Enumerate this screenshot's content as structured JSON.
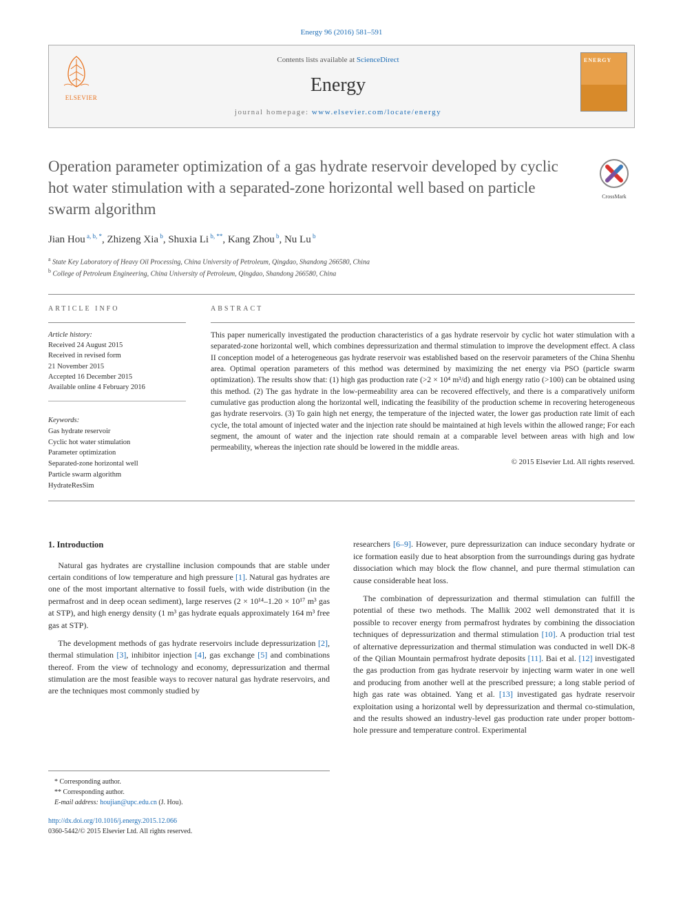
{
  "citation": "Energy 96 (2016) 581–591",
  "header": {
    "contents_prefix": "Contents lists available at ",
    "contents_link": "ScienceDirect",
    "journal": "Energy",
    "homepage_prefix": "journal homepage: ",
    "homepage_link": "www.elsevier.com/locate/energy",
    "publisher_name": "ELSEVIER"
  },
  "crossmark_label": "CrossMark",
  "title": "Operation parameter optimization of a gas hydrate reservoir developed by cyclic hot water stimulation with a separated-zone horizontal well based on particle swarm algorithm",
  "authors_html": "Jian Hou|a, b, *|, Zhizeng Xia|b|, Shuxia Li|b, **|, Kang Zhou|b|, Nu Lu|b",
  "affiliations": {
    "a": "State Key Laboratory of Heavy Oil Processing, China University of Petroleum, Qingdao, Shandong 266580, China",
    "b": "College of Petroleum Engineering, China University of Petroleum, Qingdao, Shandong 266580, China"
  },
  "article_info": {
    "heading": "ARTICLE INFO",
    "history_label": "Article history:",
    "history": [
      "Received 24 August 2015",
      "Received in revised form",
      "21 November 2015",
      "Accepted 16 December 2015",
      "Available online 4 February 2016"
    ],
    "keywords_label": "Keywords:",
    "keywords": [
      "Gas hydrate reservoir",
      "Cyclic hot water stimulation",
      "Parameter optimization",
      "Separated-zone horizontal well",
      "Particle swarm algorithm",
      "HydrateResSim"
    ]
  },
  "abstract": {
    "heading": "ABSTRACT",
    "text": "This paper numerically investigated the production characteristics of a gas hydrate reservoir by cyclic hot water stimulation with a separated-zone horizontal well, which combines depressurization and thermal stimulation to improve the development effect. A class II conception model of a heterogeneous gas hydrate reservoir was established based on the reservoir parameters of the China Shenhu area. Optimal operation parameters of this method was determined by maximizing the net energy via PSO (particle swarm optimization). The results show that: (1) high gas production rate (>2 × 10⁴ m³/d) and high energy ratio (>100) can be obtained using this method. (2) The gas hydrate in the low-permeability area can be recovered effectively, and there is a comparatively uniform cumulative gas production along the horizontal well, indicating the feasibility of the production scheme in recovering heterogeneous gas hydrate reservoirs. (3) To gain high net energy, the temperature of the injected water, the lower gas production rate limit of each cycle, the total amount of injected water and the injection rate should be maintained at high levels within the allowed range; For each segment, the amount of water and the injection rate should remain at a comparable level between areas with high and low permeability, whereas the injection rate should be lowered in the middle areas.",
    "copyright": "© 2015 Elsevier Ltd. All rights reserved."
  },
  "section1": {
    "heading": "1. Introduction",
    "p1_a": "Natural gas hydrates are crystalline inclusion compounds that are stable under certain conditions of low temperature and high pressure ",
    "p1_ref1": "[1]",
    "p1_b": ". Natural gas hydrates are one of the most important alternative to fossil fuels, with wide distribution (in the permafrost and in deep ocean sediment), large reserves (2 × 10¹⁴–1.20 × 10¹⁷ m³ gas at STP), and high energy density (1 m³ gas hydrate equals approximately 164 m³ free gas at STP).",
    "p2_a": "The development methods of gas hydrate reservoirs include depressurization ",
    "p2_ref2": "[2]",
    "p2_b": ", thermal stimulation ",
    "p2_ref3": "[3]",
    "p2_c": ", inhibitor injection ",
    "p2_ref4": "[4]",
    "p2_d": ", gas exchange ",
    "p2_ref5": "[5]",
    "p2_e": " and combinations thereof. From the view of technology and economy, depressurization and thermal stimulation are the most feasible ways to recover natural gas hydrate reservoirs, and are the techniques most commonly studied by"
  },
  "col2": {
    "p1_a": "researchers ",
    "p1_ref": "[6–9]",
    "p1_b": ". However, pure depressurization can induce secondary hydrate or ice formation easily due to heat absorption from the surroundings during gas hydrate dissociation which may block the flow channel, and pure thermal stimulation can cause considerable heat loss.",
    "p2_a": "The combination of depressurization and thermal stimulation can fulfill the potential of these two methods. The Mallik 2002 well demonstrated that it is possible to recover energy from permafrost hydrates by combining the dissociation techniques of depressurization and thermal stimulation ",
    "p2_ref10": "[10]",
    "p2_b": ". A production trial test of alternative depressurization and thermal stimulation was conducted in well DK-8 of the Qilian Mountain permafrost hydrate deposits ",
    "p2_ref11": "[11]",
    "p2_c": ". Bai et al. ",
    "p2_ref12": "[12]",
    "p2_d": " investigated the gas production from gas hydrate reservoir by injecting warm water in one well and producing from another well at the prescribed pressure; a long stable period of high gas rate was obtained. Yang et al. ",
    "p2_ref13": "[13]",
    "p2_e": " investigated gas hydrate reservoir exploitation using a horizontal well by depressurization and thermal co-stimulation, and the results showed an industry-level gas production rate under proper bottom-hole pressure and temperature control. Experimental"
  },
  "footnotes": {
    "corr1": "* Corresponding author.",
    "corr2": "** Corresponding author.",
    "email_label": "E-mail address: ",
    "email": "houjian@upc.edu.cn",
    "email_paren": " (J. Hou)."
  },
  "doi": {
    "link": "http://dx.doi.org/10.1016/j.energy.2015.12.066",
    "issn_line": "0360-5442/© 2015 Elsevier Ltd. All rights reserved."
  }
}
